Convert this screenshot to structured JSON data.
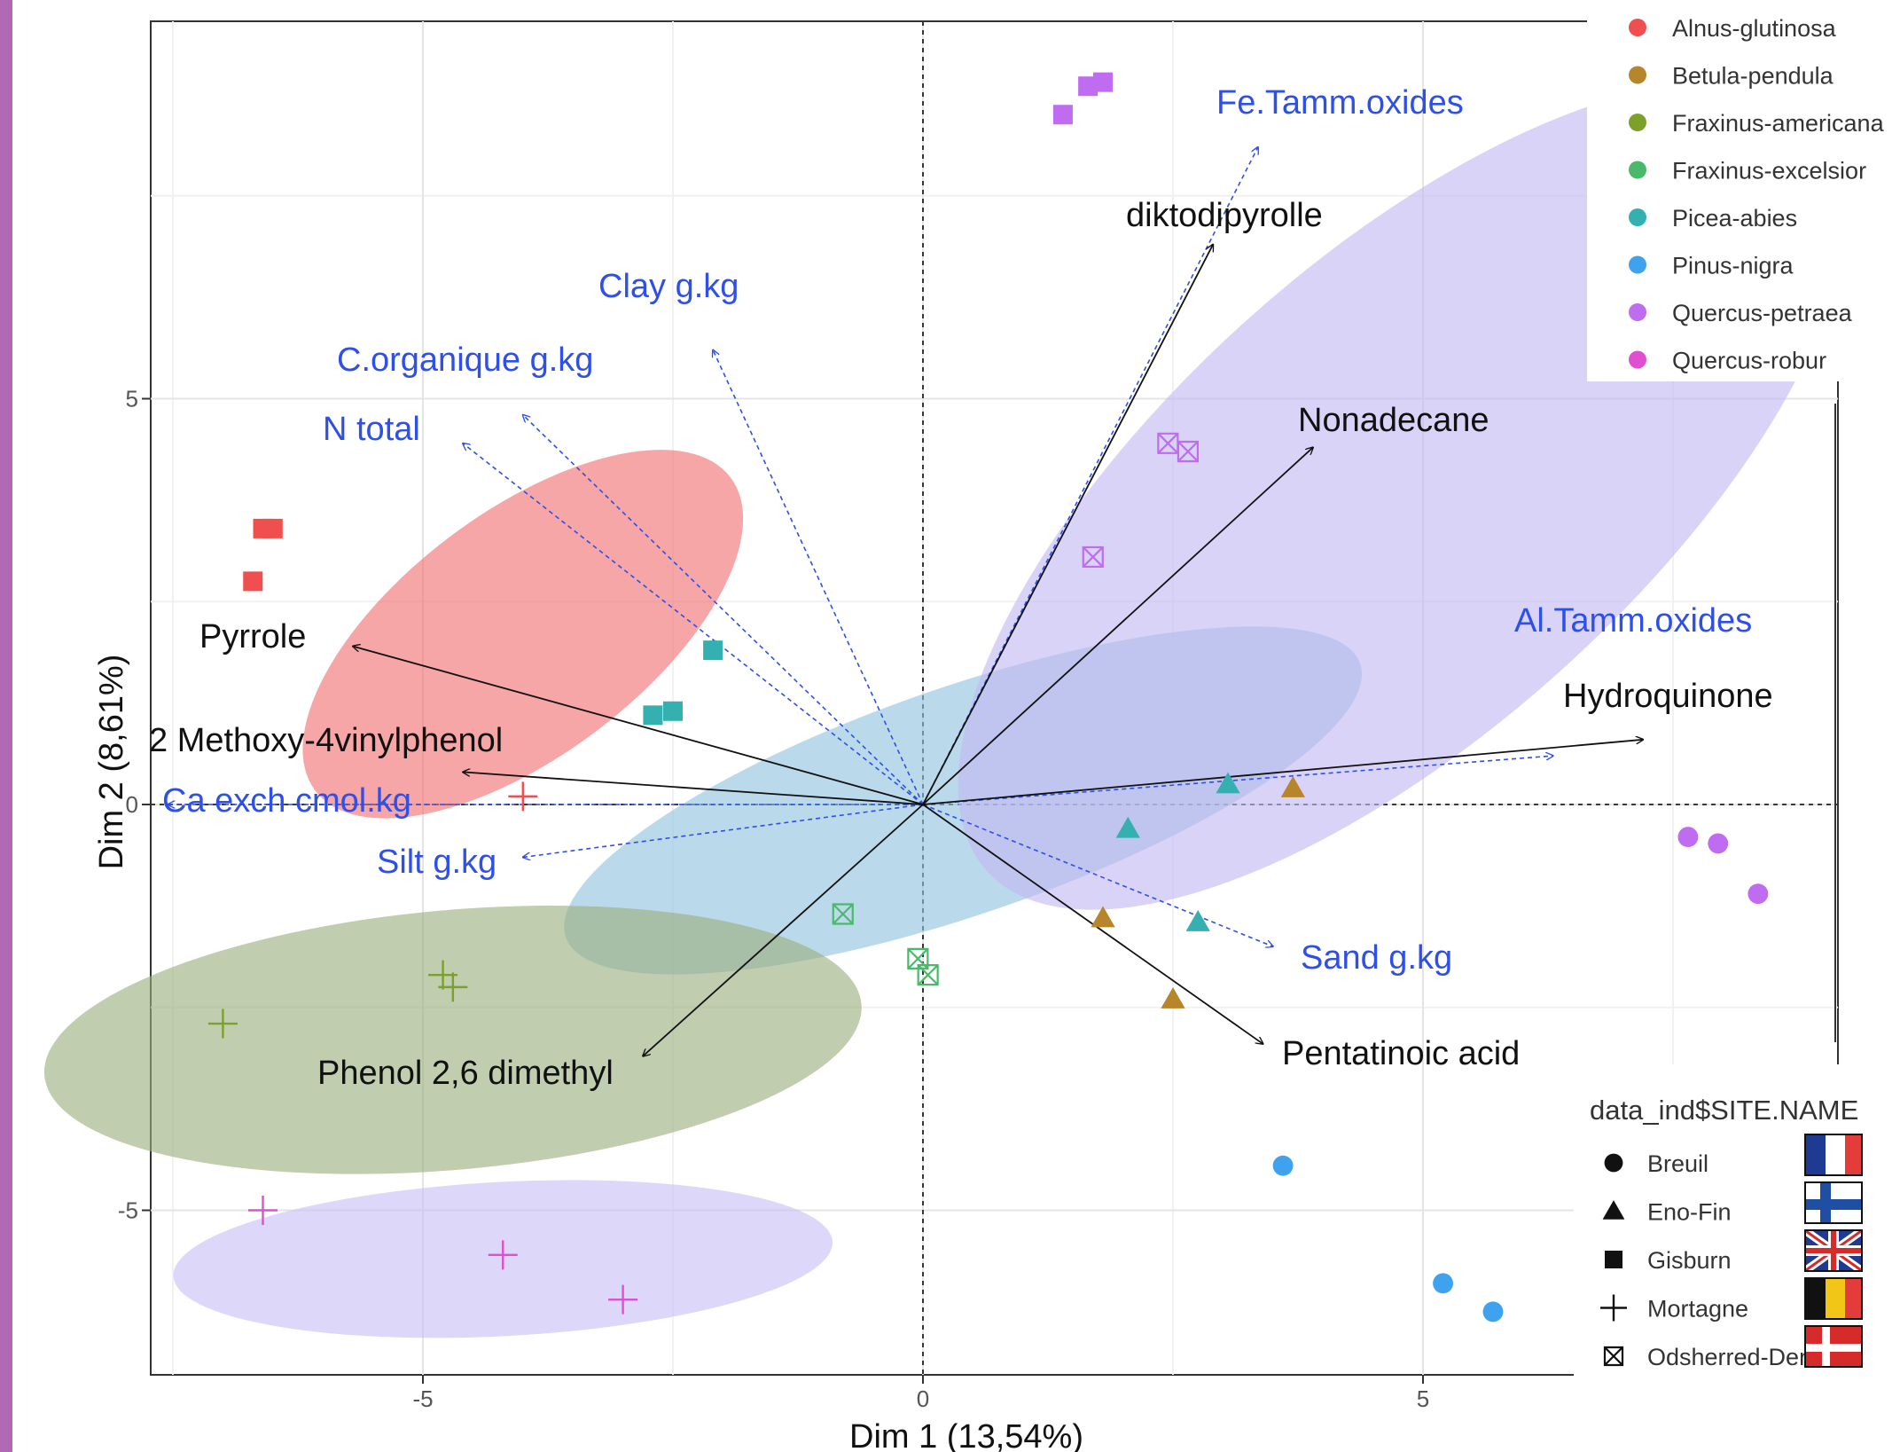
{
  "chart_data": {
    "type": "scatter",
    "subtype": "PCA biplot",
    "xlabel": "Dim 1 (13,54%)",
    "ylabel": "Dim 2 (8,61%)",
    "xlim": [
      -7.8,
      9.2
    ],
    "ylim": [
      -7.0,
      9.7
    ],
    "xticks": [
      -5,
      0,
      5
    ],
    "yticks": [
      -5,
      0,
      5
    ],
    "xtick_labels": [
      "-5",
      "0",
      "5"
    ],
    "ytick_labels": [
      "-5",
      "0",
      "5"
    ],
    "grid": true,
    "reference_lines": [
      "x=0 dashed",
      "y=0 dashed"
    ],
    "colors": {
      "Alnus-glutinosa": "#ef4f4f",
      "Betula-pendula": "#b8862a",
      "Fraxinus-americana": "#7ca12a",
      "Fraxinus-excelsior": "#4bb96b",
      "Picea-abies": "#35b0b0",
      "Pinus-nigra": "#3ea2ef",
      "Quercus-petraea": "#bf6cf0",
      "Quercus-robur": "#e04fd0",
      "supplementary_vectors": "#2e4fe8",
      "active_vectors": "#111111"
    },
    "legend_species": {
      "entries": [
        "Alnus-glutinosa",
        "Betula-pendula",
        "Fraxinus-americana",
        "Fraxinus-excelsior",
        "Picea-abies",
        "Pinus-nigra",
        "Quercus-petraea",
        "Quercus-robur"
      ],
      "placement": "top-right"
    },
    "legend_site": {
      "title": "data_ind$SITE.NAME",
      "entries": [
        {
          "label": "Breuil",
          "shape": "circle",
          "flag": "France"
        },
        {
          "label": "Eno-Fin",
          "shape": "triangle",
          "flag": "Finland"
        },
        {
          "label": "Gisburn",
          "shape": "square",
          "flag": "United Kingdom"
        },
        {
          "label": "Mortagne",
          "shape": "plus",
          "flag": "Belgium"
        },
        {
          "label": "Odsherred-Den",
          "shape": "boxcross",
          "flag": "Denmark"
        }
      ],
      "placement": "bottom-right"
    },
    "ellipses": [
      {
        "cx": -4.0,
        "cy": 2.1,
        "rx": 2.6,
        "ry": 1.5,
        "angle_deg": -37,
        "color": "#f07070"
      },
      {
        "cx": 0.4,
        "cy": 0.05,
        "rx": 4.2,
        "ry": 1.4,
        "angle_deg": -19,
        "color": "#8fc4df"
      },
      {
        "cx": 4.8,
        "cy": 3.8,
        "rx": 5.6,
        "ry": 2.9,
        "angle_deg": -42,
        "color": "#c3b8f4"
      },
      {
        "cx": -4.7,
        "cy": -2.9,
        "rx": 4.1,
        "ry": 1.6,
        "angle_deg": -5,
        "color": "#9aae7c"
      },
      {
        "cx": -4.2,
        "cy": -5.6,
        "rx": 3.3,
        "ry": 0.95,
        "angle_deg": -3,
        "color": "#c8c0f6"
      }
    ],
    "points": [
      {
        "x": -6.6,
        "y": 3.4,
        "species": "Alnus-glutinosa",
        "site": "Gisburn"
      },
      {
        "x": -6.5,
        "y": 3.4,
        "species": "Alnus-glutinosa",
        "site": "Gisburn"
      },
      {
        "x": -6.7,
        "y": 2.75,
        "species": "Alnus-glutinosa",
        "site": "Gisburn"
      },
      {
        "x": -4.0,
        "y": 0.1,
        "species": "Alnus-glutinosa",
        "site": "Mortagne"
      },
      {
        "x": 3.7,
        "y": 0.2,
        "species": "Betula-pendula",
        "site": "Eno-Fin"
      },
      {
        "x": 1.8,
        "y": -1.4,
        "species": "Betula-pendula",
        "site": "Eno-Fin"
      },
      {
        "x": 2.5,
        "y": -2.4,
        "species": "Betula-pendula",
        "site": "Eno-Fin"
      },
      {
        "x": -4.8,
        "y": -2.1,
        "species": "Fraxinus-americana",
        "site": "Mortagne"
      },
      {
        "x": -4.7,
        "y": -2.25,
        "species": "Fraxinus-americana",
        "site": "Mortagne"
      },
      {
        "x": -7.0,
        "y": -2.7,
        "species": "Fraxinus-americana",
        "site": "Mortagne"
      },
      {
        "x": -0.8,
        "y": -1.35,
        "species": "Fraxinus-excelsior",
        "site": "Odsherred-Den"
      },
      {
        "x": -0.05,
        "y": -1.9,
        "species": "Fraxinus-excelsior",
        "site": "Odsherred-Den"
      },
      {
        "x": 0.05,
        "y": -2.1,
        "species": "Fraxinus-excelsior",
        "site": "Odsherred-Den"
      },
      {
        "x": -2.1,
        "y": 1.9,
        "species": "Picea-abies",
        "site": "Gisburn"
      },
      {
        "x": -2.7,
        "y": 1.1,
        "species": "Picea-abies",
        "site": "Gisburn"
      },
      {
        "x": -2.5,
        "y": 1.15,
        "species": "Picea-abies",
        "site": "Gisburn"
      },
      {
        "x": 3.05,
        "y": 0.25,
        "species": "Picea-abies",
        "site": "Eno-Fin"
      },
      {
        "x": 2.05,
        "y": -0.3,
        "species": "Picea-abies",
        "site": "Eno-Fin"
      },
      {
        "x": 2.75,
        "y": -1.45,
        "species": "Picea-abies",
        "site": "Eno-Fin"
      },
      {
        "x": 3.6,
        "y": -4.45,
        "species": "Pinus-nigra",
        "site": "Breuil"
      },
      {
        "x": 5.2,
        "y": -5.9,
        "species": "Pinus-nigra",
        "site": "Breuil"
      },
      {
        "x": 5.7,
        "y": -6.25,
        "species": "Pinus-nigra",
        "site": "Breuil"
      },
      {
        "x": 1.4,
        "y": 8.5,
        "species": "Quercus-petraea",
        "site": "Gisburn"
      },
      {
        "x": 1.65,
        "y": 8.85,
        "species": "Quercus-petraea",
        "site": "Gisburn"
      },
      {
        "x": 1.8,
        "y": 8.9,
        "species": "Quercus-petraea",
        "site": "Gisburn"
      },
      {
        "x": 2.45,
        "y": 4.45,
        "species": "Quercus-petraea",
        "site": "Odsherred-Den"
      },
      {
        "x": 2.65,
        "y": 4.35,
        "species": "Quercus-petraea",
        "site": "Odsherred-Den"
      },
      {
        "x": 1.7,
        "y": 3.05,
        "species": "Quercus-petraea",
        "site": "Odsherred-Den"
      },
      {
        "x": 7.65,
        "y": -0.4,
        "species": "Quercus-petraea",
        "site": "Breuil"
      },
      {
        "x": 7.95,
        "y": -0.48,
        "species": "Quercus-petraea",
        "site": "Breuil"
      },
      {
        "x": 8.35,
        "y": -1.1,
        "species": "Quercus-petraea",
        "site": "Breuil"
      },
      {
        "x": -6.6,
        "y": -5.0,
        "species": "Quercus-robur",
        "site": "Mortagne"
      },
      {
        "x": -4.2,
        "y": -5.55,
        "species": "Quercus-robur",
        "site": "Mortagne"
      },
      {
        "x": -3.0,
        "y": -6.1,
        "species": "Quercus-robur",
        "site": "Mortagne"
      }
    ],
    "active_vectors": [
      {
        "name": "diktodipyrolle",
        "x": 2.9,
        "y": 6.9
      },
      {
        "name": "Nonadecane",
        "x": 3.9,
        "y": 4.4
      },
      {
        "name": "Hydroquinone",
        "x": 7.2,
        "y": 0.8
      },
      {
        "name": "Pyrrole",
        "x": -5.7,
        "y": 1.95
      },
      {
        "name": "2 Methoxy-4vinylphenol",
        "x": -4.6,
        "y": 0.4
      },
      {
        "name": "Phenol 2,6 dimethyl",
        "x": -2.8,
        "y": -3.1
      },
      {
        "name": "Pentatinoic acid",
        "x": 3.4,
        "y": -2.95
      }
    ],
    "supplementary_vectors": [
      {
        "name": "Fe.Tamm.oxides",
        "x": 3.35,
        "y": 8.1
      },
      {
        "name": "Clay g.kg",
        "x": -2.1,
        "y": 5.6
      },
      {
        "name": "C.organique g.kg",
        "x": -4.0,
        "y": 4.8
      },
      {
        "name": "N total",
        "x": -4.6,
        "y": 4.45
      },
      {
        "name": "Al.Tamm.oxides",
        "x": 6.3,
        "y": 0.6
      },
      {
        "name": "Ca exch cmol.kg",
        "x": -7.55,
        "y": 0.0
      },
      {
        "name": "Silt g.kg",
        "x": -4.0,
        "y": -0.65
      },
      {
        "name": "Sand g.kg",
        "x": 3.5,
        "y": -1.75
      }
    ]
  }
}
